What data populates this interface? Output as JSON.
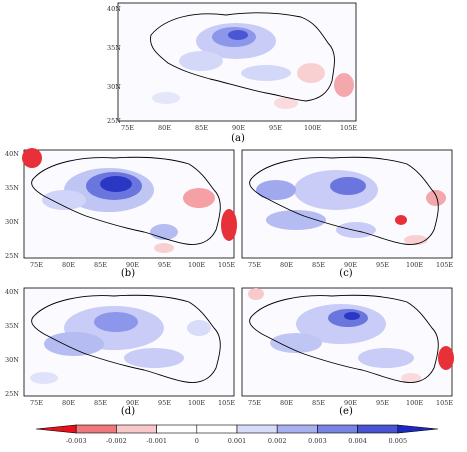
{
  "lon_ticks": [
    "75E",
    "80E",
    "85E",
    "90E",
    "95E",
    "100E",
    "105E"
  ],
  "lat_ticks": [
    "40N",
    "35N",
    "30N",
    "25N"
  ],
  "panels": [
    {
      "label": "(a)"
    },
    {
      "label": "(b)"
    },
    {
      "label": "(c)"
    },
    {
      "label": "(d)"
    },
    {
      "label": "(e)"
    }
  ],
  "colorbar": {
    "labels": [
      "-0.003",
      "-0.002",
      "-0.001",
      "0",
      "0.001",
      "0.002",
      "0.003",
      "0.004",
      "0.005"
    ],
    "colors": [
      "#e8101a",
      "#f0787c",
      "#f8c8ca",
      "#ffffff",
      "#ffffff",
      "#d8dcf8",
      "#a8b0f0",
      "#7884e4",
      "#4854d4",
      "#1e28c0"
    ]
  }
}
